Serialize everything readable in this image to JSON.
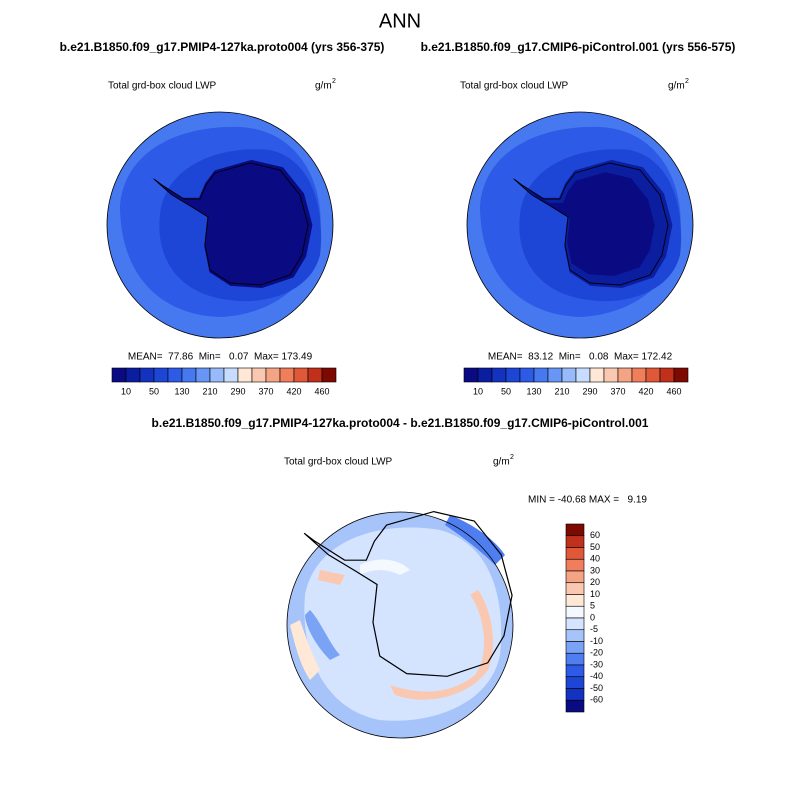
{
  "title": "ANN",
  "panels": [
    {
      "case": "b.e21.B1850.f09_g17.PMIP4-127ka.proto004 (yrs 356-375)",
      "field": "Total grd-box cloud LWP",
      "units": "g/m",
      "units_exp": "2",
      "stats": "MEAN=  77.86  Min=   0.07  Max= 173.49"
    },
    {
      "case": "b.e21.B1850.f09_g17.CMIP6-piControl.001 (yrs 556-575)",
      "field": "Total grd-box cloud LWP",
      "units": "g/m",
      "units_exp": "2",
      "stats": "MEAN=  83.12  Min=   0.08  Max= 172.42"
    }
  ],
  "colorbar": {
    "labels": [
      "10",
      "50",
      "130",
      "210",
      "290",
      "370",
      "420",
      "460"
    ],
    "colors": [
      "#0a0a82",
      "#0c1ea0",
      "#1432c0",
      "#1e46d6",
      "#2d5ae6",
      "#4678f0",
      "#6896f5",
      "#98bafa",
      "#c8dcff",
      "#ffe8d6",
      "#fac8b0",
      "#f5a385",
      "#f07e5c",
      "#e05838",
      "#c0301a",
      "#7d0a00"
    ]
  },
  "difference": {
    "case": "b.e21.B1850.f09_g17.PMIP4-127ka.proto004 - b.e21.B1850.f09_g17.CMIP6-piControl.001",
    "field": "Total grd-box cloud LWP",
    "units": "g/m",
    "units_exp": "2",
    "stats": "MIN = -40.68 MAX =   9.19",
    "colorbar": {
      "labels": [
        "60",
        "50",
        "40",
        "30",
        "20",
        "10",
        "5",
        "0",
        "-5",
        "-10",
        "-20",
        "-30",
        "-40",
        "-50",
        "-60"
      ],
      "colors": [
        "#7d0a00",
        "#c0301a",
        "#e05838",
        "#f07e5c",
        "#f5a385",
        "#fac8b0",
        "#ffe8d6",
        "#f4f8ff",
        "#d4e4ff",
        "#a6c4fa",
        "#7aa2f5",
        "#4e7ef0",
        "#2d5ae6",
        "#1e46d6",
        "#1432c0",
        "#0a0a82"
      ]
    }
  }
}
